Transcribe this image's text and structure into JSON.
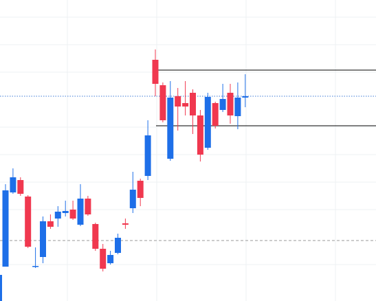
{
  "chart_data": {
    "type": "candlestick",
    "open": [
      50,
      158,
      176,
      152,
      50,
      64,
      116,
      120,
      128,
      133,
      111,
      149,
      112,
      76,
      55,
      70,
      113,
      135,
      175,
      182,
      351,
      314,
      207,
      298,
      288,
      303,
      270,
      223,
      288,
      278,
      303,
      269,
      296
    ],
    "high": [
      170,
      193,
      180,
      154,
      78,
      123,
      126,
      138,
      146,
      146,
      170,
      153,
      114,
      83,
      73,
      98,
      120,
      188,
      178,
      263,
      366,
      318,
      320,
      310,
      320,
      308,
      278,
      303,
      290,
      316,
      316,
      318,
      330
    ],
    "low": [
      50,
      156,
      153,
      77,
      48,
      55,
      105,
      108,
      123,
      118,
      109,
      124,
      73,
      43,
      53,
      68,
      105,
      128,
      138,
      176,
      298,
      260,
      204,
      248,
      270,
      243,
      203,
      220,
      251,
      275,
      258,
      250,
      282
    ],
    "close": [
      161,
      180,
      156,
      79,
      51,
      116,
      108,
      130,
      131,
      120,
      149,
      126,
      76,
      47,
      67,
      92,
      111,
      162,
      150,
      241,
      316,
      263,
      296,
      283,
      283,
      270,
      213,
      297,
      255,
      294,
      270,
      296,
      298
    ],
    "up_color": "#1e6fe8",
    "down_color": "#f0384f",
    "ylim": [
      0,
      438
    ],
    "grid": true,
    "lines": [
      {
        "value": 336,
        "color": "#000000",
        "style": "solid"
      },
      {
        "value": 255,
        "color": "#000000",
        "style": "solid"
      },
      {
        "value": 298,
        "color": "#3d7ad6",
        "style": "dotted"
      },
      {
        "value": 88,
        "color": "#9a9a9a",
        "style": "dashed"
      }
    ]
  }
}
